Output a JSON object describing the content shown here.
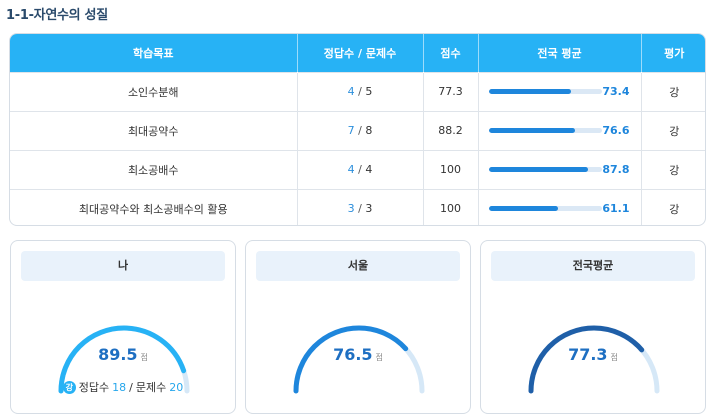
{
  "page_title": "1-1-자연수의 성질",
  "table": {
    "headers": [
      "학습목표",
      "정답수 / 문제수",
      "점수",
      "전국 평균",
      "평가"
    ],
    "rows": [
      {
        "objective": "소인수분해",
        "correct": "4",
        "total": "5",
        "score": "77.3",
        "avg": "73.4",
        "avg_pct": 73.4,
        "grade": "강"
      },
      {
        "objective": "최대공약수",
        "correct": "7",
        "total": "8",
        "score": "88.2",
        "avg": "76.6",
        "avg_pct": 76.6,
        "grade": "강"
      },
      {
        "objective": "최소공배수",
        "correct": "4",
        "total": "4",
        "score": "100",
        "avg": "87.8",
        "avg_pct": 87.8,
        "grade": "강"
      },
      {
        "objective": "최대공약수와 최소공배수의 활용",
        "correct": "3",
        "total": "3",
        "score": "100",
        "avg": "61.1",
        "avg_pct": 61.1,
        "grade": "강"
      }
    ]
  },
  "cards": [
    {
      "label": "나",
      "score": "89.5",
      "value": 89.5,
      "unit": "점",
      "color": "#27b2f5",
      "footer": {
        "badge": "강",
        "correct_label": "정답수",
        "correct": "18",
        "total_label": "문제수",
        "total": "20"
      }
    },
    {
      "label": "서울",
      "score": "76.5",
      "value": 76.5,
      "unit": "점",
      "color": "#1e86dc"
    },
    {
      "label": "전국평균",
      "score": "77.3",
      "value": 77.3,
      "unit": "점",
      "color": "#1f5fa8"
    }
  ],
  "colors": {
    "header": "#27b2f5",
    "bar": "#1e86dc",
    "track": "#d6e8f7",
    "score_text": "#1e6fc2"
  }
}
